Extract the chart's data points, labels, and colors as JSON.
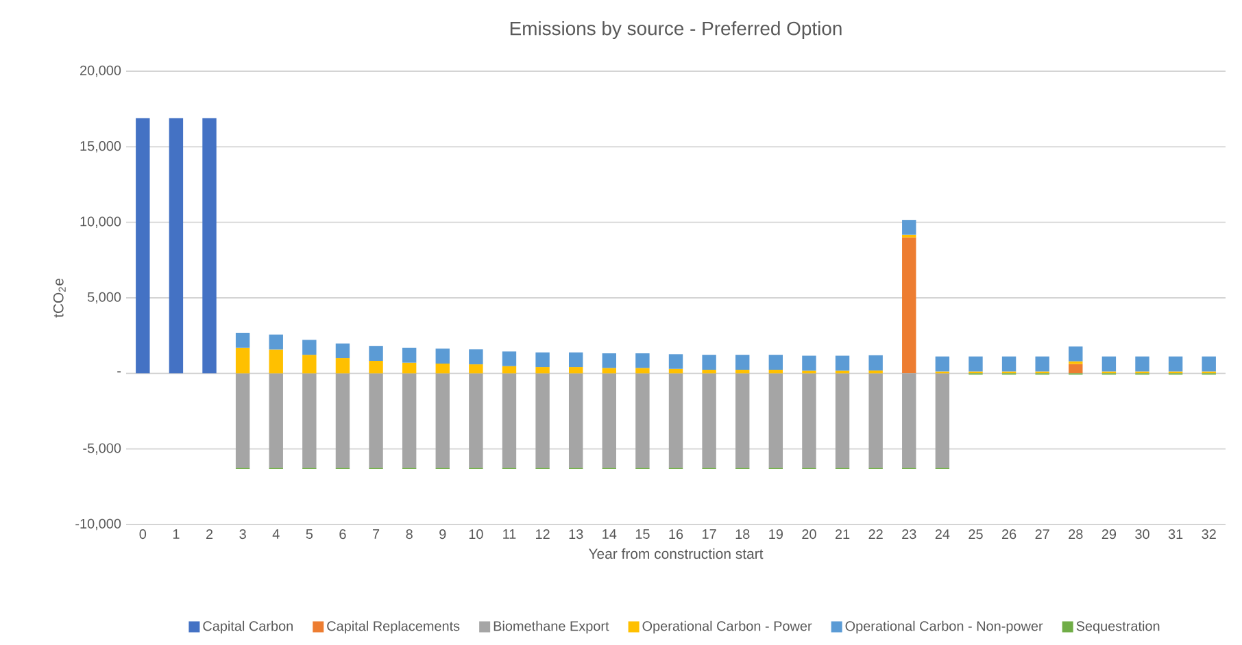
{
  "chart_data": {
    "type": "bar",
    "stacked": true,
    "title": "Emissions by source - Preferred Option",
    "xlabel": "Year from construction start",
    "ylabel": "tCO$_{2}$e",
    "categories": [
      "0",
      "1",
      "2",
      "3",
      "4",
      "5",
      "6",
      "7",
      "8",
      "9",
      "10",
      "11",
      "12",
      "13",
      "14",
      "15",
      "16",
      "17",
      "18",
      "19",
      "20",
      "21",
      "22",
      "23",
      "24",
      "25",
      "26",
      "27",
      "28",
      "29",
      "30",
      "31",
      "32"
    ],
    "series": [
      {
        "name": "Capital Carbon",
        "color": "#4472c4",
        "values": [
          16900,
          16900,
          16900,
          null,
          null,
          null,
          null,
          null,
          null,
          null,
          null,
          null,
          null,
          null,
          null,
          null,
          null,
          null,
          null,
          null,
          null,
          null,
          null,
          null,
          null,
          null,
          null,
          null,
          null,
          null,
          null,
          null,
          null
        ]
      },
      {
        "name": "Capital Replacements",
        "color": "#ed7d31",
        "values": [
          null,
          null,
          null,
          null,
          null,
          null,
          null,
          null,
          null,
          null,
          null,
          null,
          null,
          null,
          null,
          null,
          null,
          null,
          null,
          null,
          null,
          null,
          null,
          9000,
          null,
          null,
          null,
          null,
          620,
          null,
          null,
          null,
          null
        ]
      },
      {
        "name": "Biomethane Export",
        "color": "#a5a5a5",
        "values": [
          null,
          null,
          null,
          -6250,
          -6250,
          -6250,
          -6250,
          -6250,
          -6250,
          -6250,
          -6250,
          -6250,
          -6250,
          -6250,
          -6250,
          -6250,
          -6250,
          -6250,
          -6250,
          -6250,
          -6250,
          -6250,
          -6250,
          -6250,
          -6250,
          null,
          null,
          null,
          null,
          null,
          null,
          null,
          null
        ]
      },
      {
        "name": "Operational Carbon - Power",
        "color": "#ffc000",
        "values": [
          null,
          null,
          null,
          1700,
          1580,
          1230,
          1010,
          830,
          710,
          650,
          600,
          480,
          420,
          420,
          360,
          360,
          300,
          240,
          240,
          240,
          180,
          180,
          190,
          180,
          130,
          130,
          130,
          130,
          180,
          130,
          130,
          130,
          130
        ]
      },
      {
        "name": "Operational Carbon - Non-power",
        "color": "#5b9bd5",
        "values": [
          null,
          null,
          null,
          990,
          990,
          990,
          970,
          990,
          990,
          990,
          990,
          970,
          970,
          970,
          970,
          970,
          970,
          990,
          990,
          990,
          990,
          990,
          1010,
          980,
          990,
          990,
          990,
          990,
          980,
          990,
          990,
          990,
          990
        ]
      },
      {
        "name": "Sequestration",
        "color": "#70ad47",
        "values": [
          null,
          null,
          null,
          -80,
          -80,
          -80,
          -80,
          -80,
          -80,
          -80,
          -80,
          -80,
          -80,
          -80,
          -80,
          -80,
          -80,
          -80,
          -80,
          -80,
          -80,
          -80,
          -80,
          -80,
          -80,
          -80,
          -80,
          -80,
          -80,
          -80,
          -80,
          -80,
          -80
        ]
      }
    ],
    "ylim": [
      -10000,
      20000
    ],
    "yticks": [
      {
        "value": -10000,
        "label": "-10,000"
      },
      {
        "value": -5000,
        "label": "-5,000"
      },
      {
        "value": 0,
        "label": "-"
      },
      {
        "value": 5000,
        "label": "5,000"
      },
      {
        "value": 10000,
        "label": "10,000"
      },
      {
        "value": 15000,
        "label": "15,000"
      },
      {
        "value": 20000,
        "label": "20,000"
      }
    ],
    "grid": "y",
    "legend": "bottom"
  }
}
